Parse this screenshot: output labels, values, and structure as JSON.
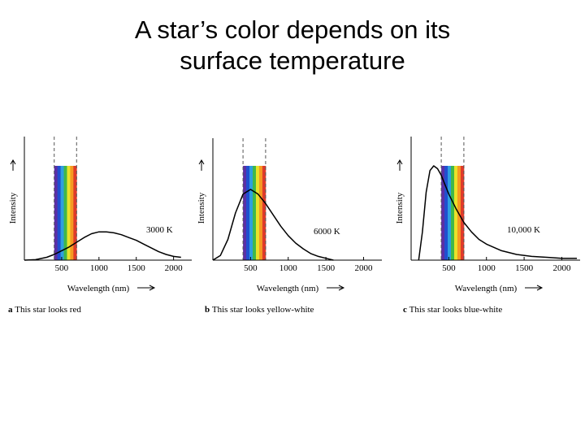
{
  "slide": {
    "title_line1": "A star’s color depends on its",
    "title_line2": "surface temperature"
  },
  "chart_data": [
    {
      "type": "line",
      "panel": "a",
      "caption": "This star looks red",
      "xlabel": "Wavelength (nm)",
      "ylabel": "Intensity",
      "xticks": [
        500,
        1000,
        1500,
        2000
      ],
      "xlim": [
        0,
        2200
      ],
      "visible_band": [
        400,
        700
      ],
      "series": [
        {
          "name": "3000 K",
          "x": [
            0,
            150,
            300,
            400,
            500,
            600,
            700,
            800,
            900,
            1000,
            1100,
            1200,
            1300,
            1400,
            1500,
            1600,
            1700,
            1800,
            1900,
            2000,
            2100
          ],
          "values": [
            0.0,
            0.005,
            0.03,
            0.06,
            0.1,
            0.14,
            0.19,
            0.24,
            0.28,
            0.3,
            0.3,
            0.29,
            0.27,
            0.24,
            0.21,
            0.17,
            0.13,
            0.09,
            0.06,
            0.04,
            0.03
          ]
        }
      ],
      "ylim": [
        0,
        1
      ]
    },
    {
      "type": "line",
      "panel": "b",
      "caption": "This star looks yellow-white",
      "xlabel": "Wavelength (nm)",
      "ylabel": "Intensity",
      "xticks": [
        500,
        1000,
        1500,
        2000
      ],
      "xlim": [
        0,
        2200
      ],
      "visible_band": [
        400,
        700
      ],
      "series": [
        {
          "name": "6000 K",
          "x": [
            0,
            100,
            200,
            300,
            400,
            500,
            600,
            700,
            800,
            900,
            1000,
            1100,
            1200,
            1300,
            1400,
            1500,
            1600
          ],
          "values": [
            0.0,
            0.05,
            0.22,
            0.5,
            0.7,
            0.75,
            0.7,
            0.6,
            0.48,
            0.36,
            0.26,
            0.18,
            0.12,
            0.07,
            0.04,
            0.02,
            0.0
          ]
        }
      ],
      "ylim": [
        0,
        1
      ]
    },
    {
      "type": "line",
      "panel": "c",
      "caption": "This star looks blue-white",
      "xlabel": "Wavelength (nm)",
      "ylabel": "Intensity",
      "xticks": [
        500,
        1000,
        1500,
        2000
      ],
      "xlim": [
        0,
        2200
      ],
      "visible_band": [
        400,
        700
      ],
      "series": [
        {
          "name": "10,000 K",
          "x": [
            100,
            150,
            200,
            250,
            300,
            350,
            400,
            450,
            500,
            600,
            700,
            800,
            900,
            1000,
            1200,
            1400,
            1600,
            1800,
            2000,
            2200
          ],
          "values": [
            0.0,
            0.3,
            0.72,
            0.95,
            1.0,
            0.97,
            0.9,
            0.8,
            0.7,
            0.54,
            0.4,
            0.3,
            0.22,
            0.17,
            0.1,
            0.06,
            0.04,
            0.03,
            0.02,
            0.02
          ]
        }
      ],
      "ylim": [
        0,
        1
      ]
    }
  ],
  "rainbow_colors": [
    "#5b2fa5",
    "#1f4fd0",
    "#2e9fe0",
    "#3fb84a",
    "#e8e22a",
    "#f59a22",
    "#e03a2a"
  ]
}
